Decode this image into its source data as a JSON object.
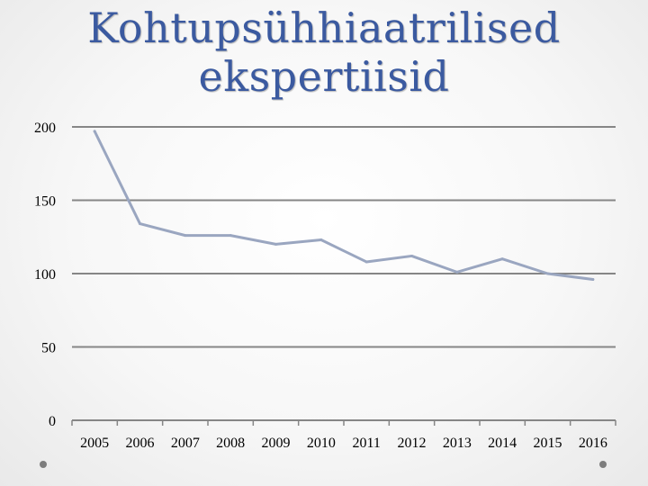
{
  "chart_data": {
    "type": "line",
    "title": "Kohtupsühhiaatrilised ekspertiisid",
    "title_lines": [
      "Kohtupsühhiaatrilised",
      "ekspertiisid"
    ],
    "categories": [
      "2005",
      "2006",
      "2007",
      "2008",
      "2009",
      "2010",
      "2011",
      "2012",
      "2013",
      "2014",
      "2015",
      "2016"
    ],
    "series": [
      {
        "values": [
          197,
          134,
          126,
          126,
          120,
          123,
          108,
          112,
          101,
          110,
          100,
          96
        ]
      }
    ],
    "yticks": [
      "0",
      "50",
      "100",
      "150",
      "200"
    ],
    "ylim": [
      0,
      200
    ],
    "grid": true,
    "legend": "none",
    "colors": {
      "line": "#9aa6c0",
      "grid": "#868686",
      "title": "#3b5aa0"
    }
  }
}
